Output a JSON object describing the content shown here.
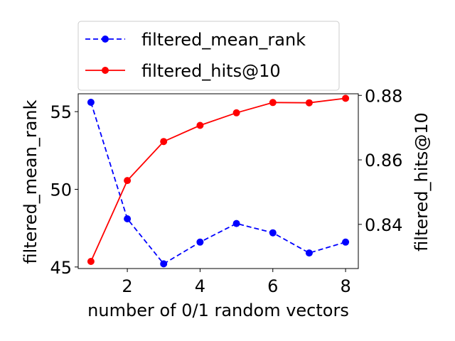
{
  "chart_data": {
    "type": "line",
    "x": [
      1,
      2,
      3,
      4,
      5,
      6,
      7,
      8
    ],
    "xlabel": "number of 0/1 random vectors",
    "xlim": [
      0.65,
      8.35
    ],
    "xticks": [
      2,
      4,
      6,
      8
    ],
    "series": [
      {
        "name": "filtered_mean_rank",
        "axis": "left",
        "color": "#0000ff",
        "linestyle": "dashed",
        "values": [
          55.6,
          48.1,
          45.2,
          46.6,
          47.8,
          47.2,
          45.9,
          46.6
        ]
      },
      {
        "name": "filtered_hits@10",
        "axis": "right",
        "color": "#ff0000",
        "linestyle": "solid",
        "values": [
          0.8285,
          0.8536,
          0.8657,
          0.8707,
          0.8746,
          0.8778,
          0.8777,
          0.8791
        ]
      }
    ],
    "ylabel_left": "filtered_mean_rank",
    "ylim_left": [
      44.9,
      56.15
    ],
    "yticks_left": [
      45,
      50,
      55
    ],
    "ylabel_right": "filtered_hits@10",
    "ylim_right": [
      0.8263,
      0.8805
    ],
    "yticks_right": [
      0.84,
      0.86,
      0.88
    ],
    "yticklabels_right": [
      "0.84",
      "0.86",
      "0.88"
    ],
    "grid": false,
    "legend_position": "above plot"
  }
}
